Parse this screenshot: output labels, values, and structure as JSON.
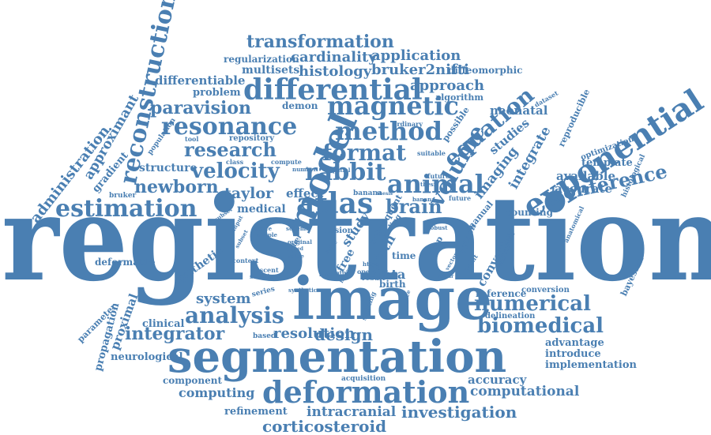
{
  "style": {
    "word_color": "#4a7fb2",
    "background": "#ffffff"
  },
  "words": [
    "registration",
    "image",
    "segmentation",
    "deformation",
    "exponential",
    "model",
    "reconstruction",
    "differential",
    "resonance",
    "magnetic",
    "method",
    "rabbit",
    "atlas",
    "brain",
    "animal",
    "volume",
    "equation",
    "estimation",
    "conference",
    "numerical",
    "biomedical",
    "analysis",
    "integrator",
    "research",
    "velocity",
    "newborn",
    "format",
    "transformation",
    "application",
    "paravision",
    "differentiable",
    "administration",
    "approximant",
    "cardinality",
    "histology",
    "bruker2nifti",
    "diffeomorphic",
    "regularization",
    "multisets",
    "problem",
    "demon",
    "approach",
    "algorithm",
    "neonatal",
    "studies",
    "imaging",
    "integrate",
    "reproducible",
    "optimization",
    "template",
    "available",
    "accurate",
    "histological",
    "counting",
    "manual",
    "validation",
    "converter",
    "conversion",
    "reference",
    "delineation",
    "advantage",
    "introduce",
    "implementation",
    "accuracy",
    "computational",
    "investigation",
    "intracranial",
    "corticosteroid",
    "computation",
    "refinement",
    "computing",
    "component",
    "acquisition",
    "neurological",
    "propagation",
    "parameter",
    "proximal",
    "clinical",
    "design",
    "resolution",
    "based",
    "software",
    "system",
    "series",
    "synthetic",
    "deformable",
    "gradient",
    "population",
    "bruker",
    "taylor",
    "effect",
    "medical",
    "structure",
    "repository",
    "tool",
    "field",
    "study",
    "data",
    "birth",
    "time",
    "free",
    "fusion",
    "robust",
    "step",
    "subsequent",
    "bayesian",
    "anatomical",
    "antenatal",
    "present",
    "modality",
    "dataset",
    "ordinary",
    "possible",
    "suitable",
    "spatial",
    "future",
    "banana",
    "thesis",
    "number",
    "compute",
    "class",
    "scheme",
    "descent",
    "solution",
    "context",
    "simple",
    "space",
    "original",
    "subset",
    "input",
    "label",
    "fixed",
    "native",
    "https",
    "operator",
    "splitting",
    "python",
    "scalar",
    "point",
    "most",
    "result",
    "linear",
    "value",
    "part",
    "solve",
    "scaling",
    "vector"
  ]
}
